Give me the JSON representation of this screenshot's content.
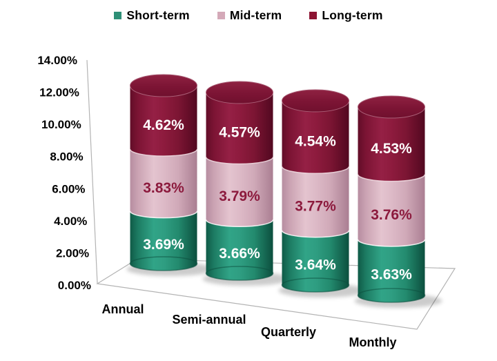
{
  "chart_data": {
    "type": "bar",
    "subtype": "3d-stacked-cylinder",
    "title": "",
    "categories": [
      "Annual",
      "Semi-annual",
      "Quarterly",
      "Monthly"
    ],
    "series": [
      {
        "name": "Short-term",
        "color": "#2E9077",
        "values": [
          3.69,
          3.66,
          3.64,
          3.63
        ],
        "data_labels": [
          "3.69%",
          "3.66%",
          "3.64%",
          "3.63%"
        ],
        "label_color": "#ffffff"
      },
      {
        "name": "Mid-term",
        "color": "#D4A9B8",
        "values": [
          3.83,
          3.79,
          3.77,
          3.76
        ],
        "data_labels": [
          "3.83%",
          "3.79%",
          "3.77%",
          "3.76%"
        ],
        "label_color": "#8C1A3D"
      },
      {
        "name": "Long-term",
        "color": "#8C1432",
        "values": [
          4.62,
          4.57,
          4.54,
          4.53
        ],
        "data_labels": [
          "4.62%",
          "4.57%",
          "4.54%",
          "4.53%"
        ],
        "label_color": "#ffffff"
      }
    ],
    "y_axis": {
      "ticks": [
        "0.00%",
        "2.00%",
        "4.00%",
        "6.00%",
        "8.00%",
        "10.00%",
        "12.00%",
        "14.00%"
      ],
      "min": 0,
      "max": 14,
      "step": 2
    },
    "legend": {
      "position": "top",
      "items": [
        "Short-term",
        "Mid-term",
        "Long-term"
      ]
    },
    "grid": false,
    "background": "#ffffff",
    "axis_line_color": "#b3b3b3",
    "text_color": "#000000"
  }
}
